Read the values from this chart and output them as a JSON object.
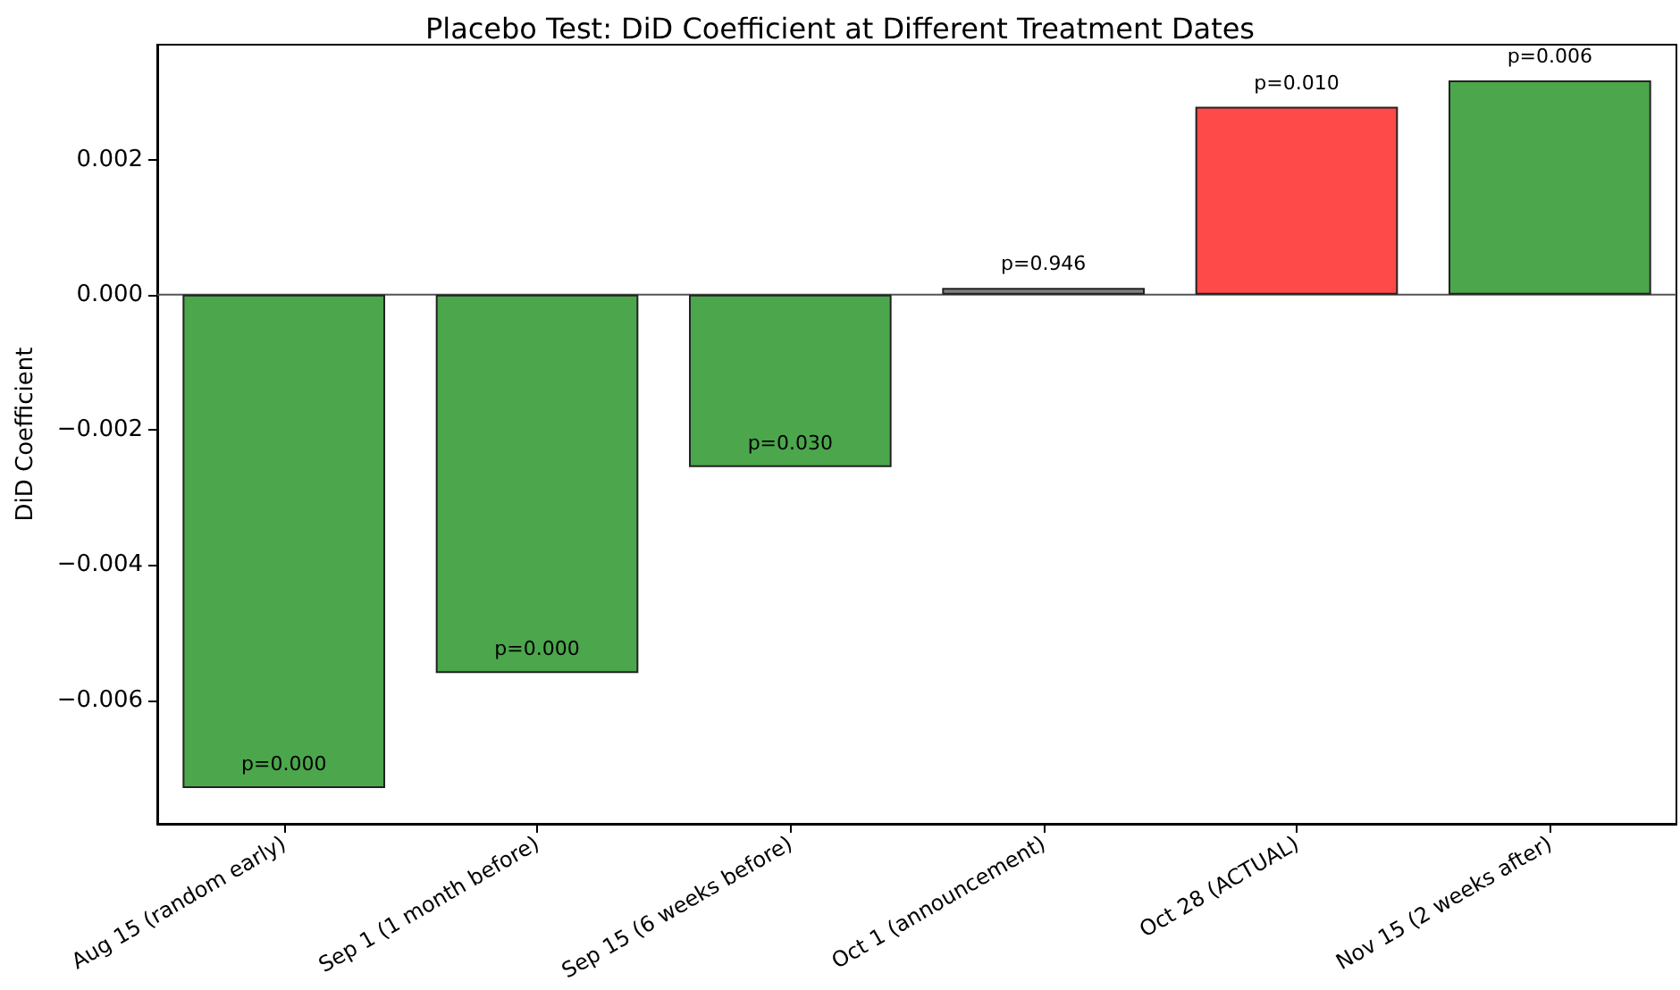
{
  "chart_data": {
    "type": "bar",
    "title": "Placebo Test: DiD Coefficient at Different Treatment Dates",
    "ylabel": "DiD Coefficient",
    "categories": [
      "Aug 15 (random early)",
      "Sep 1 (1 month before)",
      "Sep 15 (6 weeks before)",
      "Oct 1 (announcement)",
      "Oct 28 (ACTUAL)",
      "Nov 15 (2 weeks after)"
    ],
    "values": [
      -0.0073,
      -0.0056,
      -0.00255,
      0.0001,
      0.00278,
      0.00317
    ],
    "colors": [
      "#4ca64c",
      "#4ca64c",
      "#4ca64c",
      "#808080",
      "#ff4a4a",
      "#4ca64c"
    ],
    "annotations": [
      {
        "text": "p=0.000",
        "x": "Aug 15 (random early)",
        "y": -0.0073
      },
      {
        "text": "p=0.000",
        "x": "Sep 1 (1 month before)",
        "y": -0.0056
      },
      {
        "text": "p=0.030",
        "x": "Sep 15 (6 weeks before)",
        "y": -0.00255
      },
      {
        "text": "p=0.946",
        "x": "Oct 1 (announcement)",
        "y": 0.0001
      },
      {
        "text": "p=0.010",
        "x": "Oct 28 (ACTUAL)",
        "y": 0.00278
      },
      {
        "text": "p=0.006",
        "x": "Nov 15 (2 weeks after)",
        "y": 0.00317
      }
    ],
    "ylim": [
      -0.00783,
      0.0037
    ],
    "yticks": [
      {
        "value": -0.006,
        "label": "−0.006"
      },
      {
        "value": -0.004,
        "label": "−0.004"
      },
      {
        "value": -0.002,
        "label": "−0.002"
      },
      {
        "value": 0,
        "label": "0.000"
      },
      {
        "value": 0.002,
        "label": "0.002"
      }
    ],
    "ref_lines": [
      {
        "axis": "y",
        "value": 0,
        "color": "#555555"
      }
    ],
    "grid": false
  }
}
